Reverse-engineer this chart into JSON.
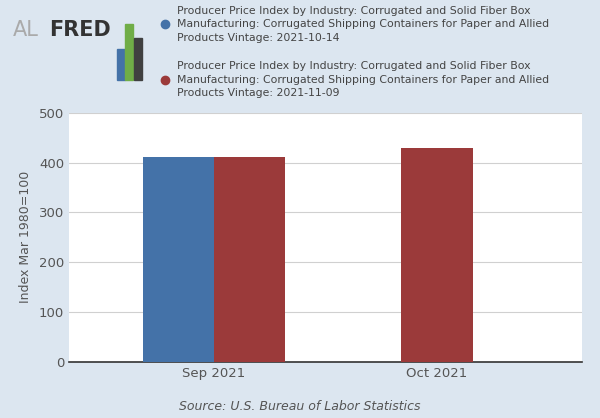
{
  "legend_labels": [
    "Producer Price Index by Industry: Corrugated and Solid Fiber Box\nManufacturing: Corrugated Shipping Containers for Paper and Allied\nProducts Vintage: 2021-10-14",
    "Producer Price Index by Industry: Corrugated and Solid Fiber Box\nManufacturing: Corrugated Shipping Containers for Paper and Allied\nProducts Vintage: 2021-11-09"
  ],
  "categories": [
    "Sep 2021",
    "Oct 2021"
  ],
  "series1_values": [
    411.0,
    null
  ],
  "series2_values": [
    411.0,
    430.0
  ],
  "bar_color1": "#4472a8",
  "bar_color2": "#9b3a3a",
  "ylabel": "Index Mar 1980=100",
  "source": "Source: U.S. Bureau of Labor Statistics",
  "ylim": [
    0,
    500
  ],
  "yticks": [
    0,
    100,
    200,
    300,
    400,
    500
  ],
  "background_color": "#dce6f0",
  "plot_bg_color": "#ffffff",
  "bar_width": 0.32,
  "legend_dot_color1": "#4472a8",
  "legend_dot_color2": "#9b3a3a",
  "al_color": "#aaaaaa",
  "fred_color": "#333333",
  "icon_colors": [
    "#4472a8",
    "#70ad47",
    "#404040"
  ],
  "tick_color": "#555555",
  "grid_color": "#d0d0d0",
  "source_color": "#555555"
}
